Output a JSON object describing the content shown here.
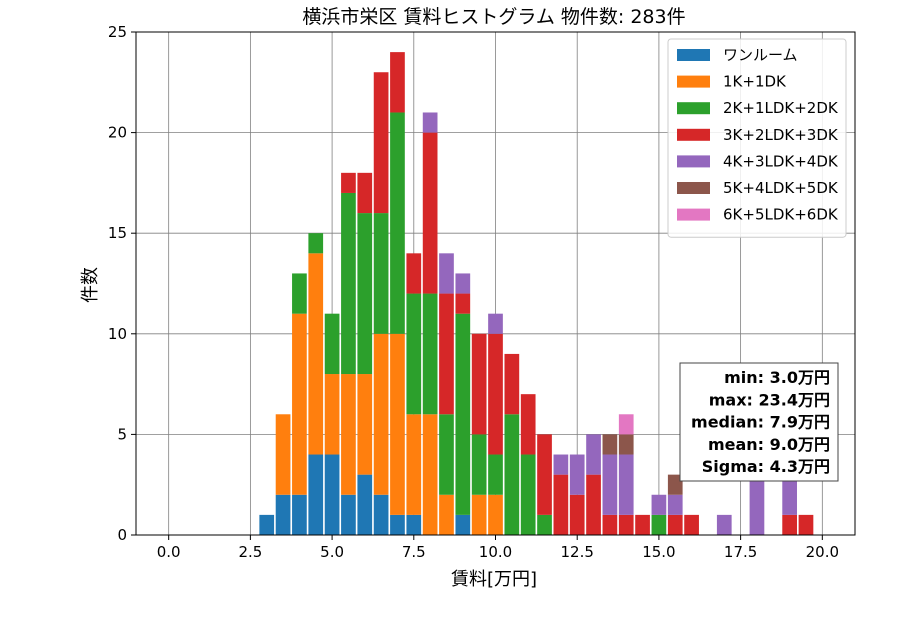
{
  "chart_data": {
    "type": "bar",
    "stacked": true,
    "title": "横浜市栄区 賃料ヒストグラム  物件数: 283件",
    "xlabel": "賃料[万円]",
    "ylabel": "件数",
    "xlim": [
      -1.0,
      21.0
    ],
    "ylim": [
      0,
      25
    ],
    "xticks": [
      "0.0",
      "2.5",
      "5.0",
      "7.5",
      "10.0",
      "12.5",
      "15.0",
      "17.5",
      "20.0"
    ],
    "xtick_values": [
      0,
      2.5,
      5,
      7.5,
      10,
      12.5,
      15,
      17.5,
      20
    ],
    "yticks": [
      "0",
      "5",
      "10",
      "15",
      "20",
      "25"
    ],
    "ytick_values": [
      0,
      5,
      10,
      15,
      20,
      25
    ],
    "grid": true,
    "legend_position": "top-right",
    "bin_width": 0.5,
    "x": [
      3.0,
      3.5,
      4.0,
      4.5,
      5.0,
      5.5,
      6.0,
      6.5,
      7.0,
      7.5,
      8.0,
      8.5,
      9.0,
      9.5,
      10.0,
      10.5,
      11.0,
      11.5,
      12.0,
      12.5,
      13.0,
      13.5,
      14.0,
      14.5,
      15.0,
      15.5,
      16.0,
      16.5,
      17.0,
      17.5,
      18.0,
      18.5,
      19.0,
      19.5
    ],
    "series": [
      {
        "name": "ワンルーム",
        "color": "#1f77b4",
        "values": [
          1,
          2,
          2,
          4,
          4,
          2,
          3,
          2,
          1,
          1,
          0,
          0,
          1,
          0,
          0,
          0,
          0,
          0,
          0,
          0,
          0,
          0,
          0,
          0,
          0,
          0,
          0,
          0,
          0,
          0,
          0,
          0,
          0,
          0
        ]
      },
      {
        "name": "1K+1DK",
        "color": "#ff7f0e",
        "values": [
          0,
          4,
          9,
          10,
          4,
          6,
          5,
          8,
          9,
          5,
          6,
          2,
          0,
          2,
          2,
          0,
          0,
          0,
          0,
          0,
          0,
          0,
          0,
          0,
          0,
          0,
          0,
          0,
          0,
          0,
          0,
          0,
          0,
          0
        ]
      },
      {
        "name": "2K+1LDK+2DK",
        "color": "#2ca02c",
        "values": [
          0,
          0,
          2,
          1,
          3,
          9,
          8,
          6,
          11,
          6,
          6,
          4,
          10,
          3,
          2,
          6,
          4,
          1,
          0,
          0,
          0,
          0,
          0,
          0,
          1,
          0,
          0,
          0,
          0,
          0,
          0,
          0,
          0,
          0
        ]
      },
      {
        "name": "3K+2LDK+3DK",
        "color": "#d62728",
        "values": [
          0,
          0,
          0,
          0,
          0,
          1,
          2,
          7,
          3,
          2,
          8,
          6,
          1,
          5,
          6,
          3,
          3,
          4,
          3,
          2,
          3,
          1,
          1,
          1,
          0,
          1,
          1,
          0,
          0,
          0,
          0,
          0,
          1,
          1
        ]
      },
      {
        "name": "4K+3LDK+4DK",
        "color": "#9467bd",
        "values": [
          0,
          0,
          0,
          0,
          0,
          0,
          0,
          0,
          0,
          0,
          1,
          2,
          1,
          0,
          1,
          0,
          0,
          0,
          1,
          2,
          2,
          3,
          3,
          0,
          1,
          1,
          0,
          0,
          1,
          0,
          3,
          0,
          3,
          0
        ]
      },
      {
        "name": "5K+4LDK+5DK",
        "color": "#8c564b",
        "values": [
          0,
          0,
          0,
          0,
          0,
          0,
          0,
          0,
          0,
          0,
          0,
          0,
          0,
          0,
          0,
          0,
          0,
          0,
          0,
          0,
          0,
          1,
          1,
          0,
          0,
          1,
          0,
          0,
          0,
          0,
          0,
          0,
          0,
          0
        ]
      },
      {
        "name": "6K+5LDK+6DK",
        "color": "#e377c2",
        "values": [
          0,
          0,
          0,
          0,
          0,
          0,
          0,
          0,
          0,
          0,
          0,
          0,
          0,
          0,
          0,
          0,
          0,
          0,
          0,
          0,
          0,
          0,
          1,
          0,
          0,
          0,
          0,
          0,
          0,
          0,
          0,
          0,
          0,
          0
        ]
      }
    ],
    "stats": [
      "min: 3.0万円",
      "max: 23.4万円",
      "median: 7.9万円",
      "mean: 9.0万円",
      "Sigma: 4.3万円"
    ]
  }
}
